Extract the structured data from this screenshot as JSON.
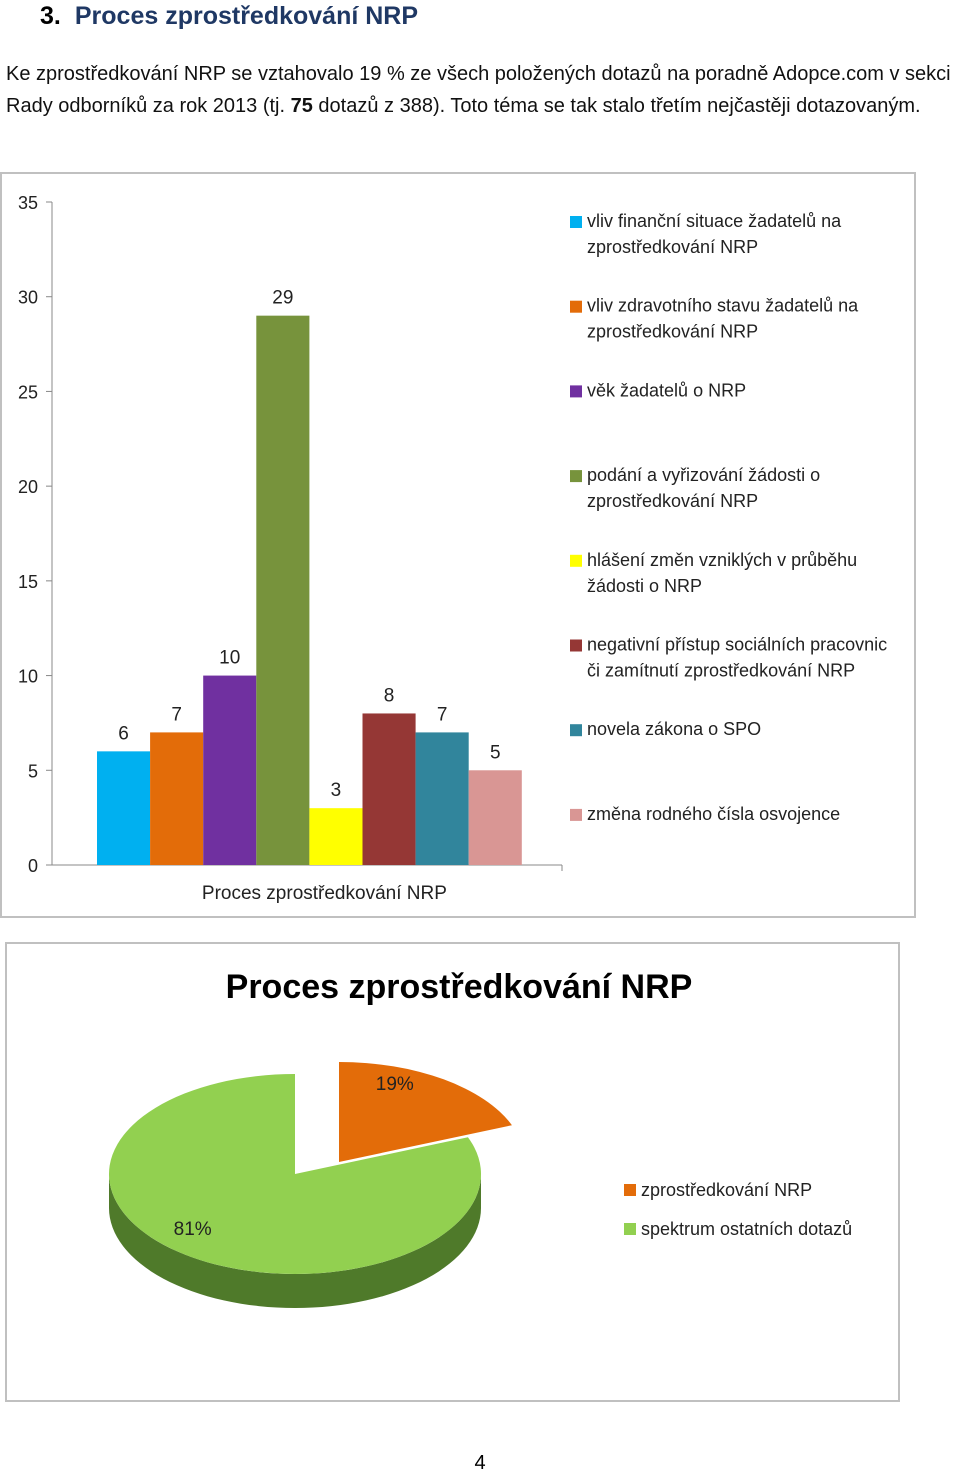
{
  "heading": {
    "number": "3.",
    "title": "Proces zprostředkování NRP"
  },
  "paragraph": {
    "part1": "Ke zprostředkování NRP se vztahovalo 19 % ze všech položených dotazů na poradně Adopce.com v sekci Rady odborníků za rok 2013 (tj. ",
    "bold": "75",
    "part2": " dotazů z 388). Toto téma se tak stalo třetím nejčastěji dotazovaným."
  },
  "page_number": "4",
  "chart_data": [
    {
      "type": "bar",
      "title": "",
      "xlabel": "Proces zprostředkování NRP",
      "ylabel": "",
      "ylim": [
        0,
        35
      ],
      "yticks": [
        0,
        5,
        10,
        15,
        20,
        25,
        30,
        35
      ],
      "categories": [
        "Proces zprostředkování NRP"
      ],
      "grid": false,
      "legend_position": "right",
      "series": [
        {
          "name": "vliv finanční situace žadatelů na zprostředkování NRP",
          "values": [
            6
          ],
          "color": "#00b0f0"
        },
        {
          "name": "vliv zdravotního stavu žadatelů na zprostředkování NRP",
          "values": [
            7
          ],
          "color": "#e36c09"
        },
        {
          "name": "věk žadatelů o NRP",
          "values": [
            10
          ],
          "color": "#7030a0"
        },
        {
          "name": "podání a vyřizování žádosti o zprostředkování NRP",
          "values": [
            29
          ],
          "color": "#77933c"
        },
        {
          "name": "hlášení změn vzniklých v průběhu žádosti o NRP",
          "values": [
            3
          ],
          "color": "#ffff00"
        },
        {
          "name": "negativní přístup sociálních pracovnic či zamítnutí zprostředkování NRP",
          "values": [
            8
          ],
          "color": "#953735"
        },
        {
          "name": "novela zákona o SPO",
          "values": [
            7
          ],
          "color": "#31859c"
        },
        {
          "name": "změna rodného čísla osvojence",
          "values": [
            5
          ],
          "color": "#d99694"
        }
      ]
    },
    {
      "type": "pie",
      "title": "Proces zprostředkování NRP",
      "legend_position": "right",
      "slices": [
        {
          "label": "zprostředkování NRP",
          "value": 19,
          "display": "19%",
          "color": "#e36c09",
          "side_color": "#7f3a05"
        },
        {
          "label": "spektrum ostatních dotazů",
          "value": 81,
          "display": "81%",
          "color": "#92d050",
          "side_color": "#4f7a2a"
        }
      ]
    }
  ]
}
